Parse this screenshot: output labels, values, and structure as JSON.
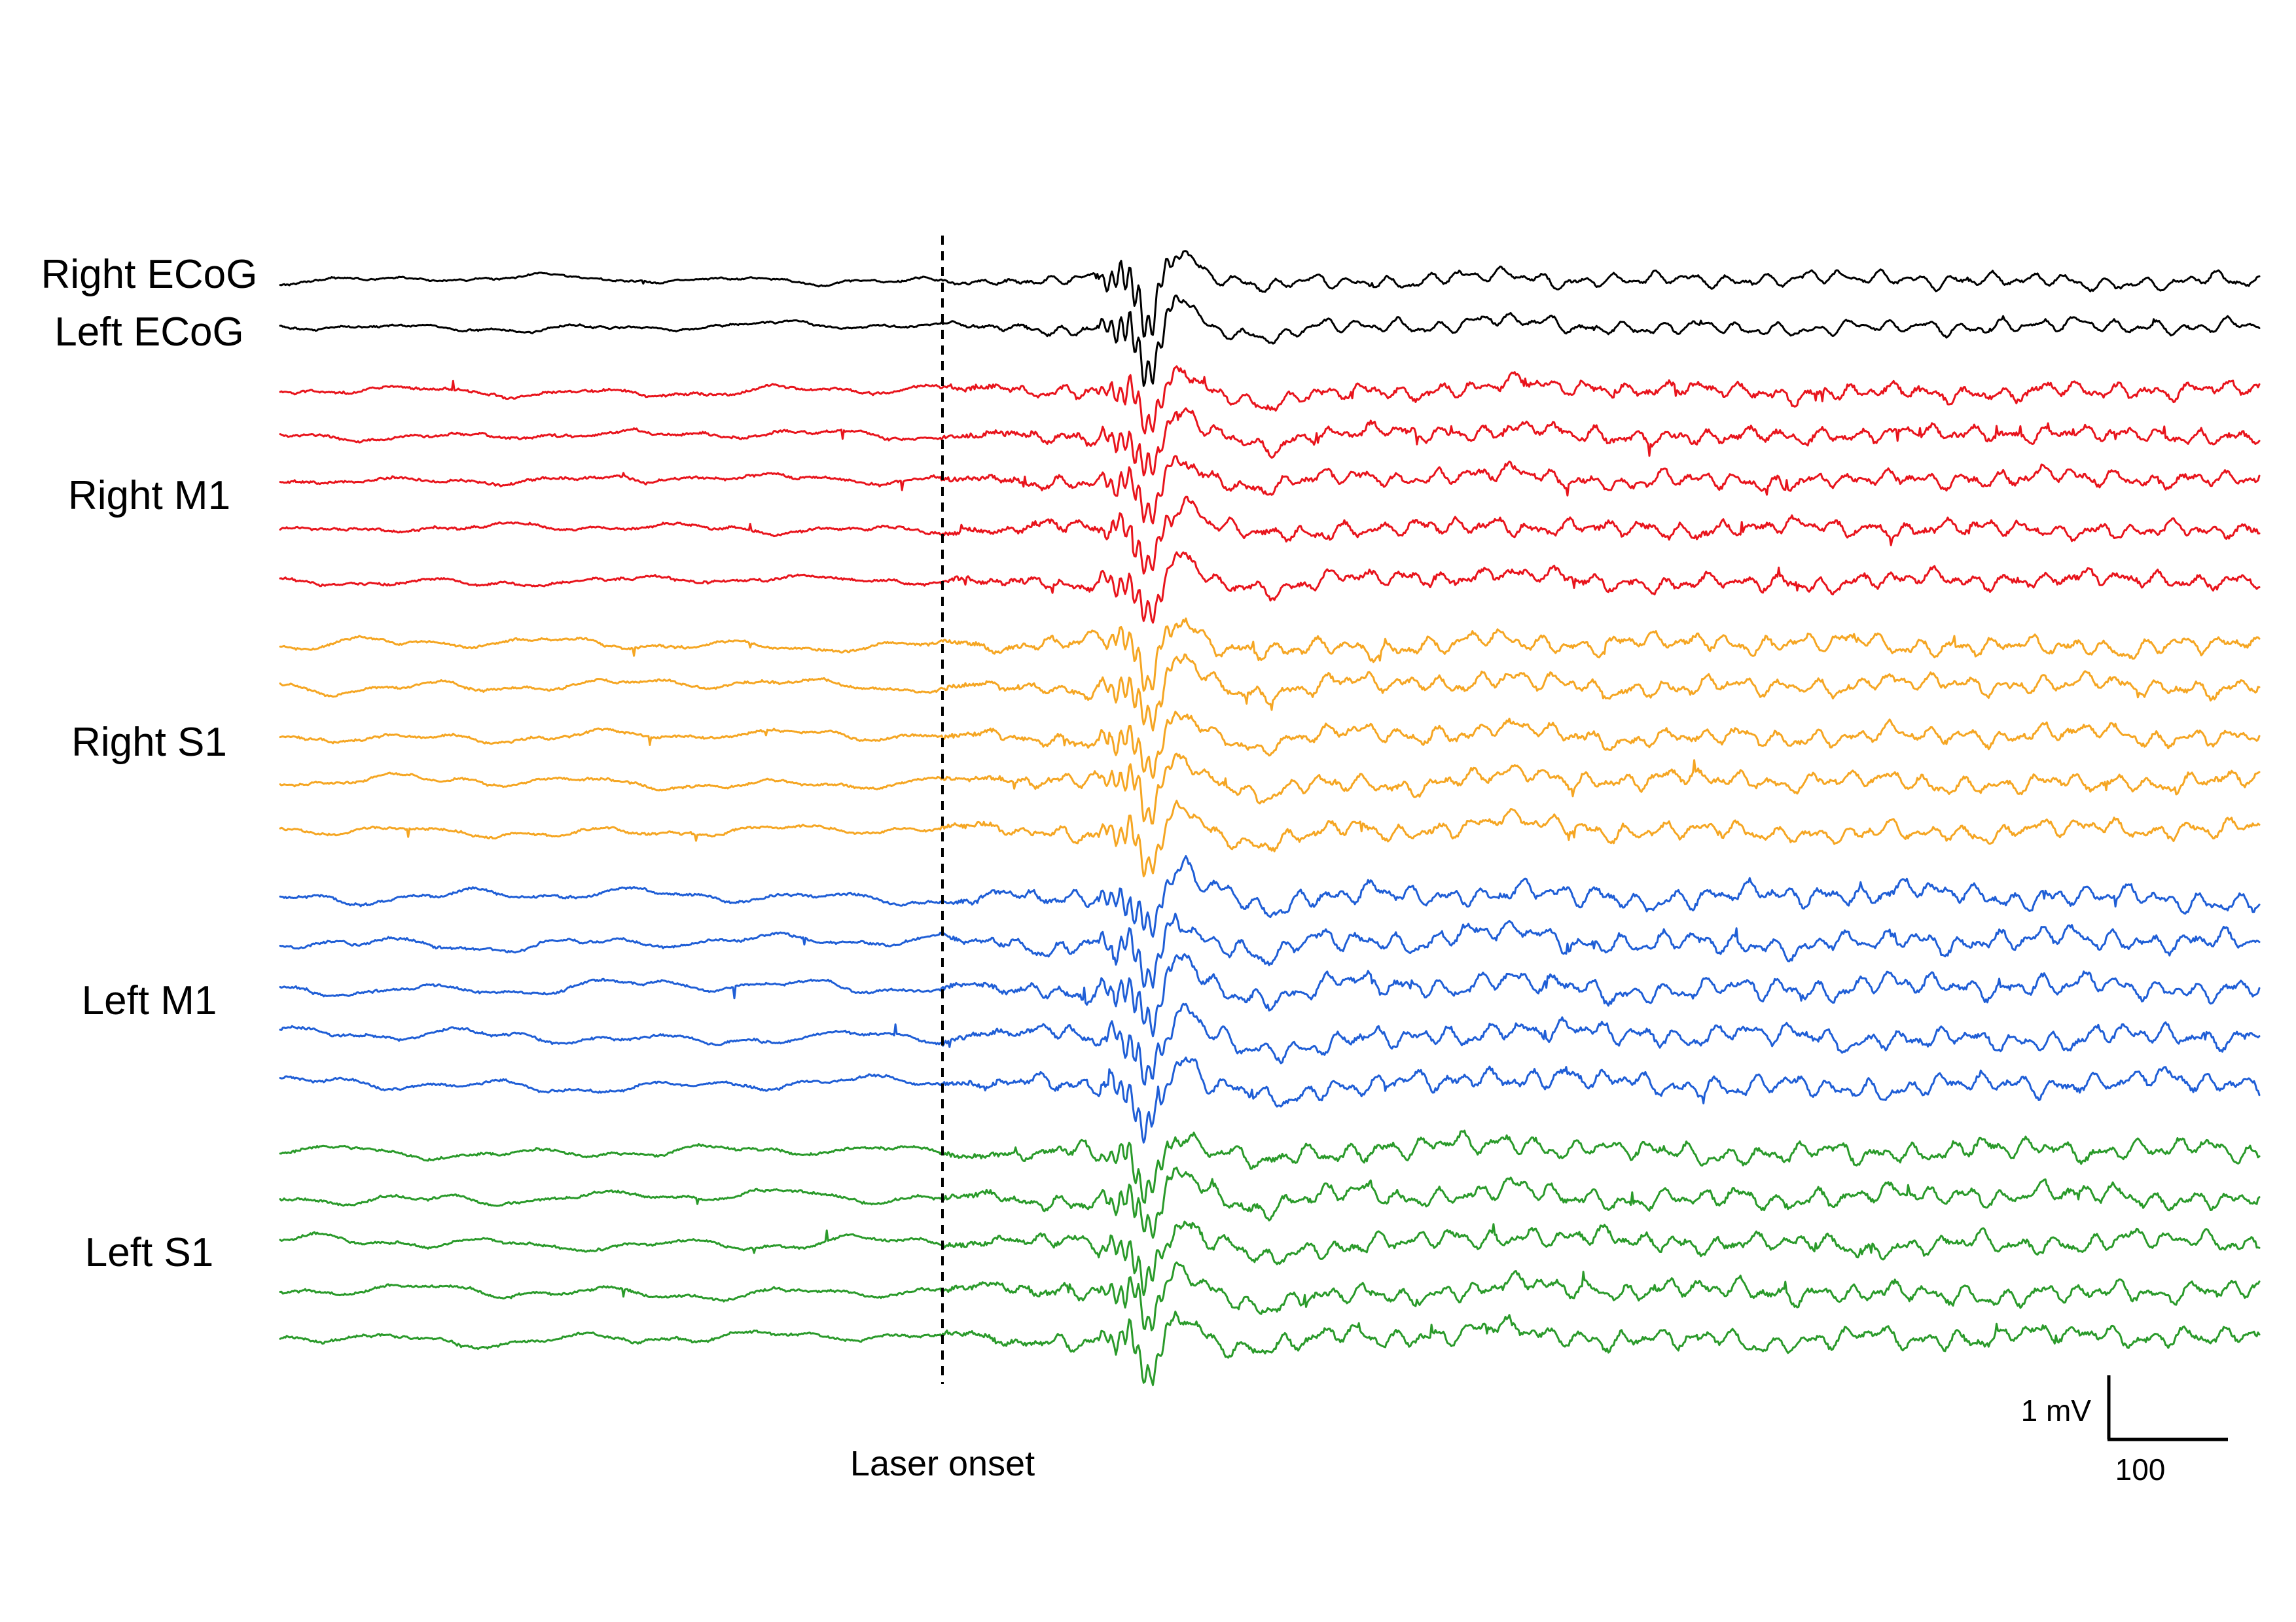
{
  "chart_data": {
    "type": "line",
    "title": "",
    "xlabel": "",
    "ylabel": "",
    "grid": false,
    "legend": "none",
    "x_range": [
      0,
      1500
    ],
    "event": {
      "label": "Laser onset",
      "x": 500
    },
    "groups": [
      {
        "name": "Right ECoG",
        "color": "#000000",
        "n_channels": 1,
        "noise": 0.25,
        "evoked_gain": 2.0,
        "late_gain": 0.9,
        "wave_gain": 0.8
      },
      {
        "name": "Left ECoG",
        "color": "#000000",
        "n_channels": 1,
        "noise": 0.25,
        "evoked_gain": 2.0,
        "late_gain": 0.9,
        "wave_gain": 0.8
      },
      {
        "name": "Right M1",
        "color": "#e8141c",
        "n_channels": 5,
        "noise": 0.55,
        "evoked_gain": 1.5,
        "late_gain": 1.0,
        "wave_gain": 0.9
      },
      {
        "name": "Right S1",
        "color": "#f5a623",
        "n_channels": 5,
        "noise": 0.5,
        "evoked_gain": 1.5,
        "late_gain": 1.1,
        "wave_gain": 1.2
      },
      {
        "name": "Left M1",
        "color": "#1f5ed6",
        "n_channels": 5,
        "noise": 0.55,
        "evoked_gain": 1.6,
        "late_gain": 1.3,
        "wave_gain": 1.4
      },
      {
        "name": "Left S1",
        "color": "#2a9a2a",
        "n_channels": 5,
        "noise": 0.55,
        "evoked_gain": 1.5,
        "late_gain": 1.2,
        "wave_gain": 1.3
      }
    ],
    "scale_bar": {
      "amplitude_label": "1 mV",
      "time_label": "100",
      "time_value": 100
    }
  }
}
